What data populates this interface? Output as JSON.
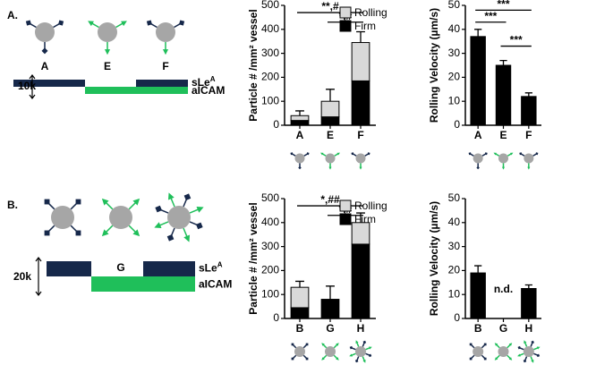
{
  "panels": [
    {
      "label": "A.",
      "particles": [
        "A",
        "E",
        "F"
      ],
      "ligand1": {
        "text": "sLe",
        "sup": "A"
      },
      "ligand2": "aICAM",
      "scale": "10k"
    },
    {
      "label": "B.",
      "particles": [
        "B",
        "G",
        "H"
      ],
      "ligand1": {
        "text": "sLe",
        "sup": "A"
      },
      "ligand2": "aICAM",
      "scale": "20k"
    }
  ],
  "chart_data": [
    {
      "type": "stacked_bar",
      "categories": [
        "A",
        "E",
        "F"
      ],
      "ylabel": "Particle # /mm² vessel",
      "series": [
        {
          "name": "Rolling",
          "color": "#d9d9d9",
          "values": [
            20,
            65,
            160
          ],
          "errors": [
            20,
            50,
            45
          ]
        },
        {
          "name": "Firm",
          "color": "#000000",
          "values": [
            20,
            35,
            185
          ]
        }
      ],
      "ylim": [
        0,
        500
      ],
      "yticks": [
        0,
        100,
        200,
        300,
        400,
        500
      ],
      "legend": "upper right",
      "annotations": [
        "**,#",
        "*,#"
      ]
    },
    {
      "type": "bar",
      "categories": [
        "A",
        "E",
        "F"
      ],
      "ylabel": "Rolling Velocity (µm/s)",
      "series": [
        {
          "color": "#000000",
          "values": [
            37,
            25,
            12
          ],
          "errors": [
            3,
            2,
            1.5
          ]
        }
      ],
      "ylim": [
        0,
        50
      ],
      "yticks": [
        0,
        10,
        20,
        30,
        40,
        50
      ],
      "annotations": [
        "***",
        "***",
        "***"
      ]
    },
    {
      "type": "stacked_bar",
      "categories": [
        "B",
        "G",
        "H"
      ],
      "ylabel": "Particle # /mm² vessel",
      "series": [
        {
          "name": "Rolling",
          "color": "#d9d9d9",
          "values": [
            85,
            0,
            90
          ],
          "errors": [
            25,
            55,
            40
          ]
        },
        {
          "name": "Firm",
          "color": "#000000",
          "values": [
            45,
            80,
            310
          ]
        }
      ],
      "ylim": [
        0,
        500
      ],
      "yticks": [
        0,
        100,
        200,
        300,
        400,
        500
      ],
      "legend": "upper right",
      "annotations": [
        "*,##",
        "*,#"
      ]
    },
    {
      "type": "bar",
      "categories": [
        "B",
        "G",
        "H"
      ],
      "ylabel": "Rolling Velocity (µm/s)",
      "series": [
        {
          "color": "#000000",
          "values": [
            19,
            null,
            12.5
          ],
          "errors": [
            3,
            null,
            1.5
          ]
        }
      ],
      "ylim": [
        0,
        50
      ],
      "yticks": [
        0,
        10,
        20,
        30,
        40,
        50
      ],
      "annotations": [
        "n.d."
      ]
    }
  ]
}
